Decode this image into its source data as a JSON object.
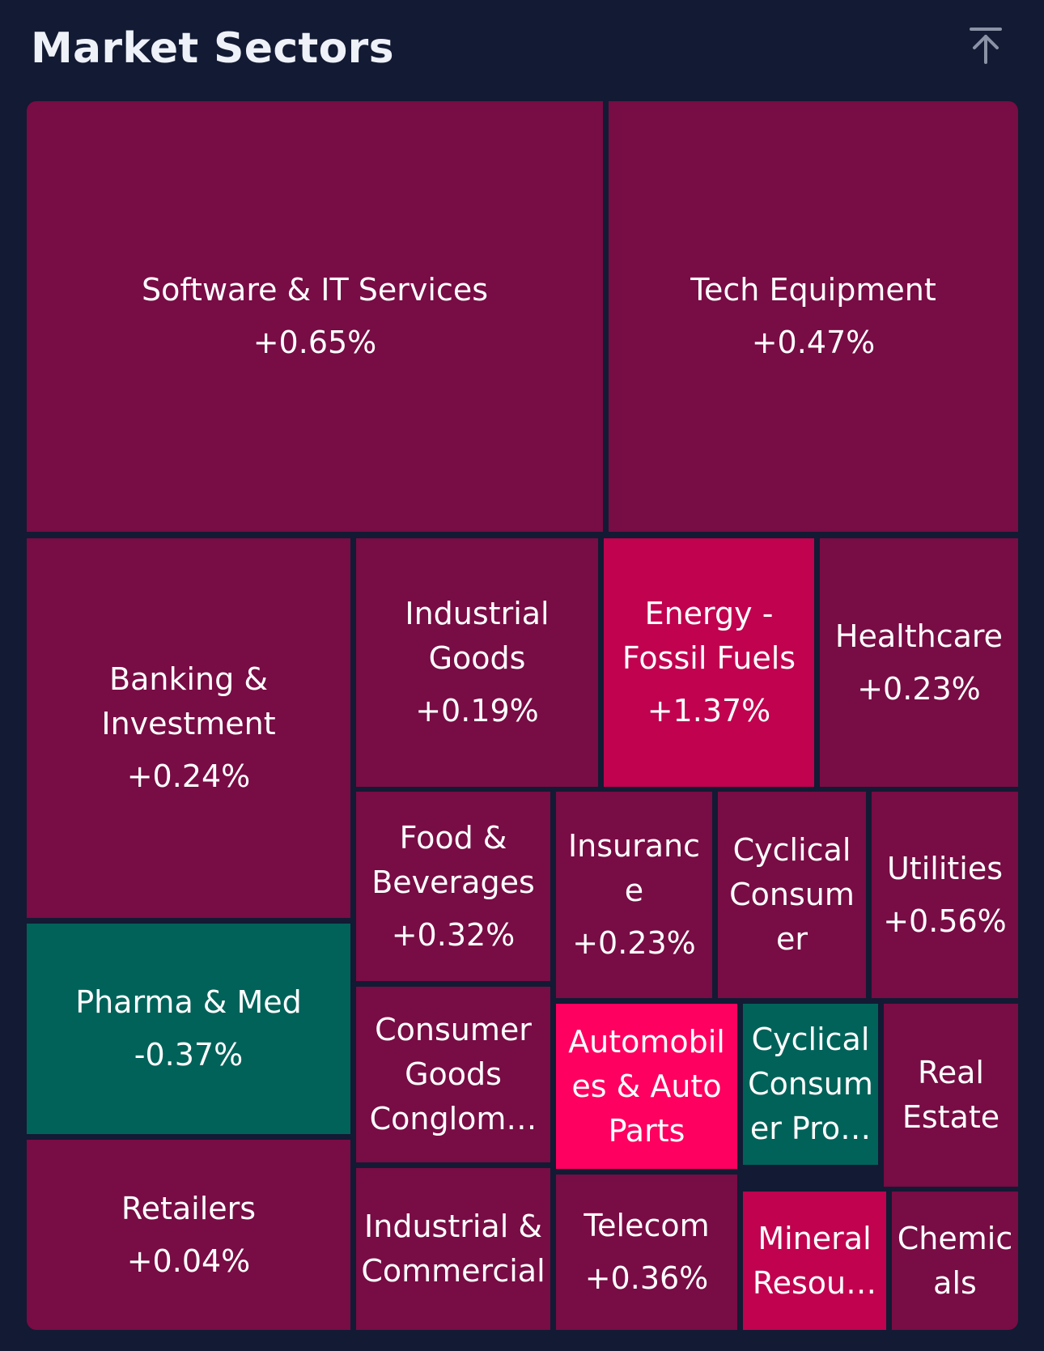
{
  "header": {
    "title": "Market Sectors",
    "scroll_top_icon": "arrow-up-to-line-icon"
  },
  "colors": {
    "background": "#131a33",
    "title": "#eef1f8",
    "mild_positive": "#780c44",
    "strong_positive": "#c0024f",
    "very_strong_positive": "#fd0060",
    "negative": "#006259",
    "icon": "#8a93a6"
  },
  "sectors": [
    {
      "id": "software",
      "name": "Software & IT Services",
      "lines": [
        "Software & IT Services"
      ],
      "change": "+0.65%"
    },
    {
      "id": "tech-equipment",
      "name": "Tech Equipment",
      "lines": [
        "Tech Equipment"
      ],
      "change": "+0.47%"
    },
    {
      "id": "banking",
      "name": "Banking & Investment",
      "lines": [
        "Banking &",
        "Investment"
      ],
      "change": "+0.24%"
    },
    {
      "id": "industrial-goods",
      "name": "Industrial Goods",
      "lines": [
        "Industrial",
        "Goods"
      ],
      "change": "+0.19%"
    },
    {
      "id": "energy",
      "name": "Energy - Fossil Fuels",
      "lines": [
        "Energy -",
        "Fossil Fuels"
      ],
      "change": "+1.37%"
    },
    {
      "id": "healthcare",
      "name": "Healthcare",
      "lines": [
        "Healthcare"
      ],
      "change": "+0.23%"
    },
    {
      "id": "food-beverages",
      "name": "Food & Beverages",
      "lines": [
        "Food &",
        "Beverages"
      ],
      "change": "+0.32%"
    },
    {
      "id": "insurance",
      "name": "Insurance",
      "lines": [
        "Insuranc",
        "e"
      ],
      "change": "+0.23%"
    },
    {
      "id": "cyclical-consumer",
      "name": "Cyclical Consumer",
      "lines": [
        "Cyclical",
        "Consum",
        "er"
      ],
      "change": ""
    },
    {
      "id": "utilities",
      "name": "Utilities",
      "lines": [
        "Utilities"
      ],
      "change": "+0.56%"
    },
    {
      "id": "pharma",
      "name": "Pharma & Med",
      "lines": [
        "Pharma & Med"
      ],
      "change": "-0.37%"
    },
    {
      "id": "consumer-goods",
      "name": "Consumer Goods Conglomerates",
      "lines": [
        "Consumer",
        "Goods",
        "Conglom…"
      ],
      "change": ""
    },
    {
      "id": "automobiles",
      "name": "Automobiles & Auto Parts",
      "lines": [
        "Automobil",
        "es & Auto",
        "Parts"
      ],
      "change": ""
    },
    {
      "id": "cyclical-products",
      "name": "Cyclical Consumer Products",
      "lines": [
        "Cyclical",
        "Consum",
        "er Pro…"
      ],
      "change": ""
    },
    {
      "id": "real-estate",
      "name": "Real Estate",
      "lines": [
        "Real",
        "Estate"
      ],
      "change": ""
    },
    {
      "id": "retailers",
      "name": "Retailers",
      "lines": [
        "Retailers"
      ],
      "change": "+0.04%"
    },
    {
      "id": "industrial-commercial",
      "name": "Industrial & Commercial",
      "lines": [
        "Industrial &",
        "Commercial"
      ],
      "change": ""
    },
    {
      "id": "telecom",
      "name": "Telecom",
      "lines": [
        "Telecom"
      ],
      "change": "+0.36%"
    },
    {
      "id": "mineral",
      "name": "Mineral Resources",
      "lines": [
        "Mineral",
        "Resou…"
      ],
      "change": ""
    },
    {
      "id": "chemicals",
      "name": "Chemicals",
      "lines": [
        "Chemic",
        "als"
      ],
      "change": ""
    }
  ]
}
